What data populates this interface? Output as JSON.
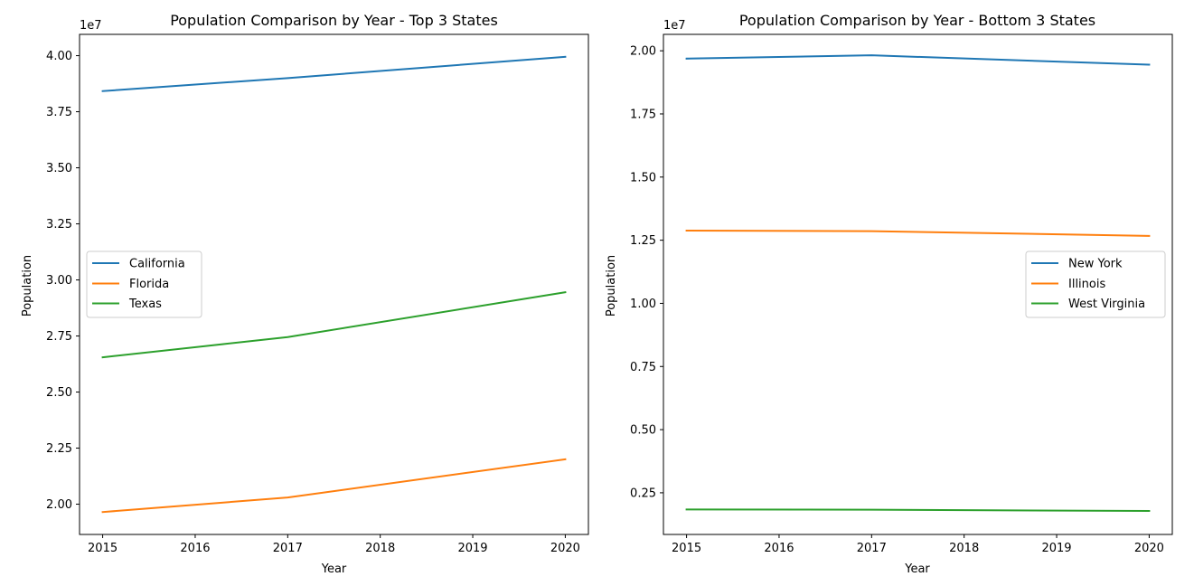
{
  "chart_data": [
    {
      "type": "line",
      "title": "Population Comparison by Year - Top 3 States",
      "xlabel": "Year",
      "ylabel": "Population",
      "offset_label": "1e7",
      "x": [
        2015,
        2017,
        2020
      ],
      "x_ticks": [
        2015,
        2016,
        2017,
        2018,
        2019,
        2020
      ],
      "x_tick_labels": [
        "2015",
        "2016",
        "2017",
        "2018",
        "2019",
        "2020"
      ],
      "xlim": [
        2014.75,
        2020.25
      ],
      "ylim": [
        18650000,
        40950000
      ],
      "y_ticks": [
        20000000,
        22500000,
        25000000,
        27500000,
        30000000,
        32500000,
        35000000,
        37500000,
        40000000
      ],
      "y_tick_labels": [
        "2.00",
        "2.25",
        "2.50",
        "2.75",
        "3.00",
        "3.25",
        "3.50",
        "3.75",
        "4.00"
      ],
      "grid": false,
      "legend_position": "center-left",
      "series": [
        {
          "name": "California",
          "color": "#1f77b4",
          "values": [
            38420000,
            39000000,
            39950000
          ]
        },
        {
          "name": "Florida",
          "color": "#ff7f0e",
          "values": [
            19650000,
            20300000,
            22000000
          ]
        },
        {
          "name": "Texas",
          "color": "#2ca02c",
          "values": [
            26550000,
            27450000,
            29450000
          ]
        }
      ]
    },
    {
      "type": "line",
      "title": "Population Comparison by Year - Bottom 3 States",
      "xlabel": "Year",
      "ylabel": "Population",
      "offset_label": "1e7",
      "x": [
        2015,
        2017,
        2020
      ],
      "x_ticks": [
        2015,
        2016,
        2017,
        2018,
        2019,
        2020
      ],
      "x_tick_labels": [
        "2015",
        "2016",
        "2017",
        "2018",
        "2019",
        "2020"
      ],
      "xlim": [
        2014.75,
        2020.25
      ],
      "ylim": [
        850000,
        20650000
      ],
      "y_ticks": [
        2500000,
        5000000,
        7500000,
        10000000,
        12500000,
        15000000,
        17500000,
        20000000
      ],
      "y_tick_labels": [
        "0.25",
        "0.50",
        "0.75",
        "1.00",
        "1.25",
        "1.50",
        "1.75",
        "2.00"
      ],
      "grid": false,
      "legend_position": "center-right",
      "series": [
        {
          "name": "New York",
          "color": "#1f77b4",
          "values": [
            19690000,
            19820000,
            19450000
          ]
        },
        {
          "name": "Illinois",
          "color": "#ff7f0e",
          "values": [
            12880000,
            12860000,
            12670000
          ]
        },
        {
          "name": "West Virginia",
          "color": "#2ca02c",
          "values": [
            1840000,
            1830000,
            1780000
          ]
        }
      ]
    }
  ]
}
